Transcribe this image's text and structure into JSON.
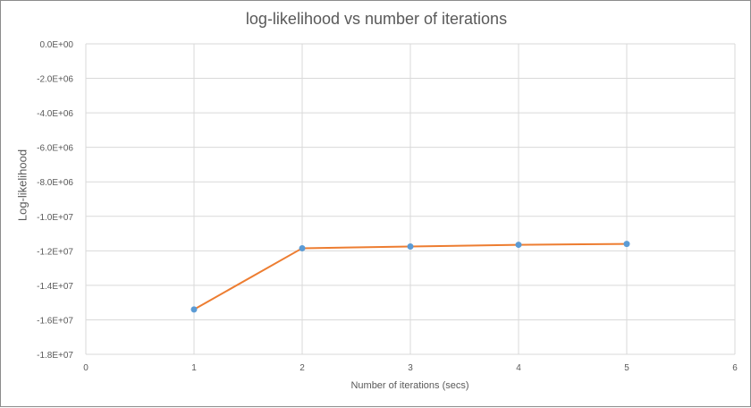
{
  "chart_data": {
    "type": "line",
    "title": "log-likelihood vs number of iterations",
    "xlabel": "Number  of iterations (secs)",
    "ylabel": "Log-likelihood",
    "xlim": [
      0,
      6
    ],
    "ylim": [
      -18000000,
      0
    ],
    "x_ticks": [
      "0",
      "1",
      "2",
      "3",
      "4",
      "5",
      "6"
    ],
    "y_ticks": [
      "0.0E+00",
      "-2.0E+06",
      "-4.0E+06",
      "-6.0E+06",
      "-8.0E+06",
      "-1.0E+07",
      "-1.2E+07",
      "-1.4E+07",
      "-1.6E+07",
      "-1.8E+07"
    ],
    "grid": true,
    "series": [
      {
        "x": [
          1,
          2,
          3,
          4,
          5
        ],
        "values": [
          -15400000,
          -11850000,
          -11750000,
          -11650000,
          -11600000
        ],
        "line_color": "#ED7D31",
        "marker_color": "#5B9BD5"
      }
    ]
  }
}
